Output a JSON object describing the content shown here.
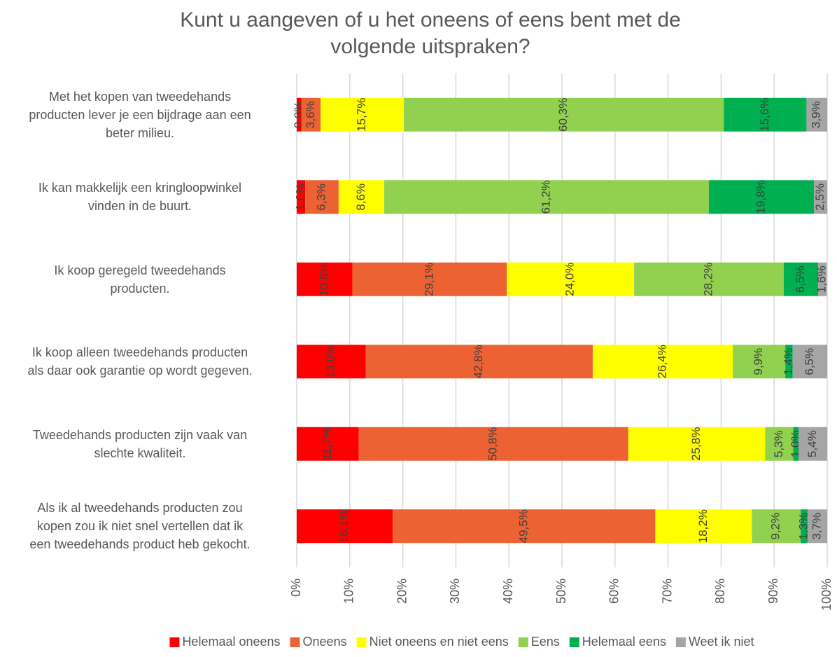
{
  "chart_data": {
    "type": "stacked-barh",
    "title": "Kunt u aangeven of u het oneens of eens bent met de\nvolgende uitspraken?",
    "categories": [
      "Met het kopen van tweedehands\nproducten lever je een bijdrage aan een\nbeter milieu.",
      "Ik kan makkelijk een kringloopwinkel\nvinden in de buurt.",
      "Ik koop geregeld tweedehands\nproducten.",
      "Ik koop alleen tweedehands producten\nals daar ook garantie op wordt gegeven.",
      "Tweedehands producten zijn vaak van\nslechte kwaliteit.",
      "Als ik al tweedehands producten zou\nkopen zou ik niet snel vertellen dat ik\neen tweedehands product heb gekocht."
    ],
    "series": [
      {
        "name": "Helemaal oneens",
        "color": "#ff0000",
        "values": [
          0.9,
          1.6,
          10.5,
          13.0,
          11.7,
          18.1
        ],
        "value_labels": [
          "0,9%",
          "1,6%",
          "10,5%",
          "13,0%",
          "11,7%",
          "18,1%"
        ]
      },
      {
        "name": "Oneens",
        "color": "#ed6232",
        "values": [
          3.6,
          6.3,
          29.1,
          42.8,
          50.8,
          49.5
        ],
        "value_labels": [
          "3,6%",
          "6,3%",
          "29,1%",
          "42,8%",
          "50,8%",
          "49,5%"
        ]
      },
      {
        "name": "Niet oneens en niet eens",
        "color": "#ffff00",
        "values": [
          15.7,
          8.6,
          24.0,
          26.4,
          25.8,
          18.2
        ],
        "value_labels": [
          "15,7%",
          "8,6%",
          "24,0%",
          "26,4%",
          "25,8%",
          "18,2%"
        ]
      },
      {
        "name": "Eens",
        "color": "#92d050",
        "values": [
          60.3,
          61.2,
          28.2,
          9.9,
          5.3,
          9.2
        ],
        "value_labels": [
          "60,3%",
          "61,2%",
          "28,2%",
          "9,9%",
          "5,3%",
          "9,2%"
        ]
      },
      {
        "name": "Helemaal eens",
        "color": "#00b050",
        "values": [
          15.6,
          19.8,
          6.5,
          1.4,
          1.0,
          1.3
        ],
        "value_labels": [
          "15,6%",
          "19,8%",
          "6,5%",
          "1,4%",
          "1,0%",
          "1,3%"
        ]
      },
      {
        "name": "Weet ik niet",
        "color": "#a5a5a5",
        "values": [
          3.9,
          2.5,
          1.6,
          6.5,
          5.4,
          3.7
        ],
        "value_labels": [
          "3,9%",
          "2,5%",
          "1,6%",
          "6,5%",
          "5,4%",
          "3,7%"
        ]
      }
    ],
    "xlim": [
      0,
      100
    ],
    "xticks": [
      {
        "value": 0,
        "label": "0%"
      },
      {
        "value": 10,
        "label": "10%"
      },
      {
        "value": 20,
        "label": "20%"
      },
      {
        "value": 30,
        "label": "30%"
      },
      {
        "value": 40,
        "label": "40%"
      },
      {
        "value": 50,
        "label": "50%"
      },
      {
        "value": 60,
        "label": "60%"
      },
      {
        "value": 70,
        "label": "70%"
      },
      {
        "value": 80,
        "label": "80%"
      },
      {
        "value": 90,
        "label": "90%"
      },
      {
        "value": 100,
        "label": "100%"
      }
    ],
    "grid": true,
    "legend": "bottom"
  }
}
